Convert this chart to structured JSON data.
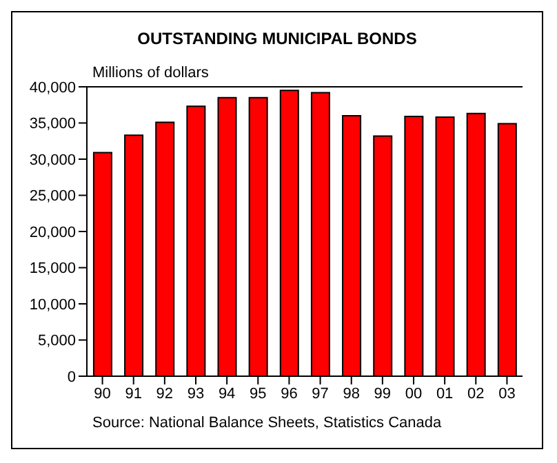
{
  "chart_data": {
    "type": "bar",
    "title": "OUTSTANDING MUNICIPAL BONDS",
    "ylabel": "Millions of dollars",
    "categories": [
      "90",
      "91",
      "92",
      "93",
      "94",
      "95",
      "96",
      "97",
      "98",
      "99",
      "00",
      "01",
      "02",
      "03"
    ],
    "values": [
      30900,
      33300,
      35100,
      37300,
      38500,
      38500,
      39500,
      39200,
      36000,
      33200,
      35900,
      35800,
      36300,
      34900
    ],
    "color": "#ff0000",
    "ylim": [
      0,
      40000
    ],
    "yticks": [
      {
        "value": 0,
        "label": "0"
      },
      {
        "value": 5000,
        "label": "5,000"
      },
      {
        "value": 10000,
        "label": "10,000"
      },
      {
        "value": 15000,
        "label": "15,000"
      },
      {
        "value": 20000,
        "label": "20,000"
      },
      {
        "value": 25000,
        "label": "25,000"
      },
      {
        "value": 30000,
        "label": "30,000"
      },
      {
        "value": 35000,
        "label": "35,000"
      },
      {
        "value": 40000,
        "label": "40,000"
      }
    ],
    "grid": false,
    "legend": false,
    "annotations": [
      "Source: National Balance Sheets, Statistics Canada"
    ]
  }
}
